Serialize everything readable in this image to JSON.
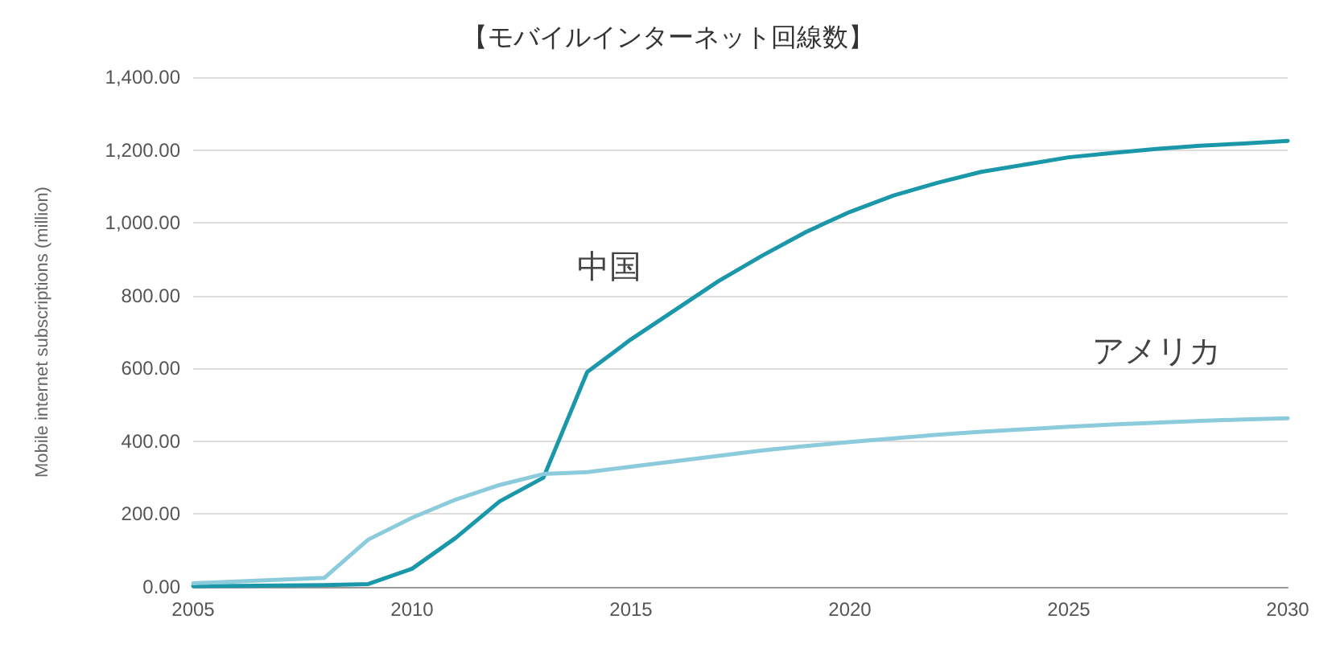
{
  "chart_data": {
    "type": "line",
    "title": "【モバイルインターネット回線数】",
    "ylabel": "Mobile internet subscriptions (million)",
    "x": [
      2005,
      2006,
      2007,
      2008,
      2009,
      2010,
      2011,
      2012,
      2013,
      2014,
      2015,
      2016,
      2017,
      2018,
      2019,
      2020,
      2021,
      2022,
      2023,
      2024,
      2025,
      2026,
      2027,
      2028,
      2029,
      2030
    ],
    "series": [
      {
        "name": "中国",
        "color": "#1a97a8",
        "values": [
          2,
          3,
          4,
          5,
          8,
          50,
          135,
          235,
          300,
          590,
          680,
          760,
          840,
          910,
          975,
          1030,
          1075,
          1110,
          1140,
          1160,
          1180,
          1192,
          1203,
          1212,
          1218,
          1225
        ]
      },
      {
        "name": "アメリカ",
        "color": "#8ccbdc",
        "values": [
          10,
          15,
          20,
          25,
          130,
          190,
          240,
          280,
          310,
          315,
          330,
          345,
          360,
          375,
          387,
          398,
          408,
          418,
          426,
          433,
          440,
          446,
          451,
          456,
          460,
          463
        ]
      }
    ],
    "xlim": [
      2005,
      2030
    ],
    "xticks": [
      2005,
      2010,
      2015,
      2020,
      2025,
      2030
    ],
    "ylim": [
      0,
      1400
    ],
    "yticks": [
      {
        "value": 0,
        "label": "0.00"
      },
      {
        "value": 200,
        "label": "200.00"
      },
      {
        "value": 400,
        "label": "400.00"
      },
      {
        "value": 600,
        "label": "600.00"
      },
      {
        "value": 800,
        "label": "800.00"
      },
      {
        "value": 1000,
        "label": "1,000.00"
      },
      {
        "value": 1200,
        "label": "1,200.00"
      },
      {
        "value": 1400,
        "label": "1,400.00"
      }
    ],
    "grid": "y",
    "legend": false,
    "marker": "none",
    "line_style": "solid"
  }
}
